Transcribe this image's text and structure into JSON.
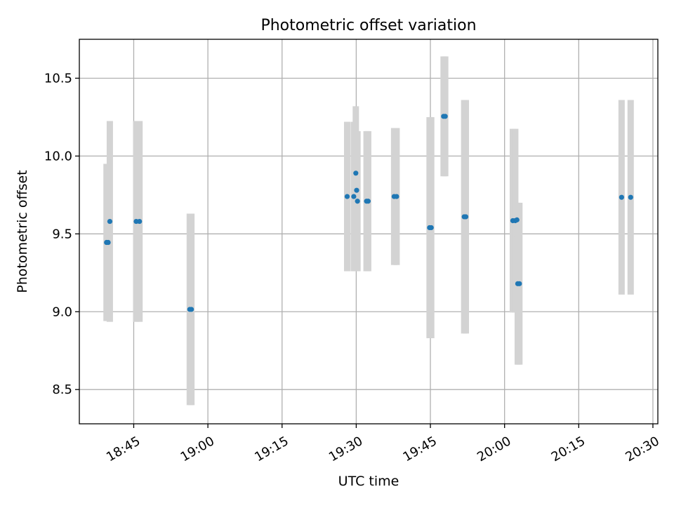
{
  "chart_data": {
    "type": "scatter",
    "title": "Photometric offset variation",
    "xlabel": "UTC time",
    "ylabel": "Photometric offset",
    "x_is_time": true,
    "xlim": [
      "18:34:00",
      "20:31:00"
    ],
    "ylim": [
      8.28,
      10.75
    ],
    "x_ticks": [
      "18:45",
      "19:00",
      "19:15",
      "19:30",
      "19:45",
      "20:00",
      "20:15",
      "20:30"
    ],
    "y_ticks": [
      8.5,
      9.0,
      9.5,
      10.0,
      10.5
    ],
    "y_tick_labels": [
      "8.5",
      "9.0",
      "9.5",
      "10.0",
      "10.5"
    ],
    "grid": true,
    "colors": {
      "points": "#1f77b4",
      "errorbars": "#d3d3d3",
      "grid": "#b0b0b0",
      "axes": "#000000"
    },
    "points": [
      {
        "x": "18:39:30",
        "y": 9.445,
        "yerr": 0.505
      },
      {
        "x": "18:39:50",
        "y": 9.445,
        "yerr": 0.505
      },
      {
        "x": "18:40:10",
        "y": 9.58,
        "yerr": 0.645
      },
      {
        "x": "18:45:30",
        "y": 9.58,
        "yerr": 0.645
      },
      {
        "x": "18:46:10",
        "y": 9.58,
        "yerr": 0.645
      },
      {
        "x": "18:56:20",
        "y": 9.015,
        "yerr": 0.615
      },
      {
        "x": "18:56:40",
        "y": 9.015,
        "yerr": 0.615
      },
      {
        "x": "19:28:10",
        "y": 9.74,
        "yerr": 0.48
      },
      {
        "x": "19:29:30",
        "y": 9.74,
        "yerr": 0.48
      },
      {
        "x": "19:29:55",
        "y": 9.89,
        "yerr": 0.43
      },
      {
        "x": "19:30:05",
        "y": 9.78,
        "yerr": 0.38
      },
      {
        "x": "19:30:15",
        "y": 9.71,
        "yerr": 0.45
      },
      {
        "x": "19:32:05",
        "y": 9.71,
        "yerr": 0.45
      },
      {
        "x": "19:32:25",
        "y": 9.71,
        "yerr": 0.45
      },
      {
        "x": "19:37:40",
        "y": 9.74,
        "yerr": 0.44
      },
      {
        "x": "19:38:10",
        "y": 9.74,
        "yerr": 0.44
      },
      {
        "x": "19:44:50",
        "y": 9.54,
        "yerr": 0.71
      },
      {
        "x": "19:45:10",
        "y": 9.54,
        "yerr": 0.71
      },
      {
        "x": "19:47:40",
        "y": 10.255,
        "yerr": 0.385
      },
      {
        "x": "19:48:00",
        "y": 10.255,
        "yerr": 0.385
      },
      {
        "x": "19:51:50",
        "y": 9.61,
        "yerr": 0.75
      },
      {
        "x": "19:52:10",
        "y": 9.61,
        "yerr": 0.75
      },
      {
        "x": "20:01:40",
        "y": 9.585,
        "yerr": 0.59
      },
      {
        "x": "20:02:10",
        "y": 9.585,
        "yerr": 0.59
      },
      {
        "x": "20:02:30",
        "y": 9.59,
        "yerr": 0.11
      },
      {
        "x": "20:02:40",
        "y": 9.18,
        "yerr": 0.52
      },
      {
        "x": "20:03:00",
        "y": 9.18,
        "yerr": 0.52
      },
      {
        "x": "20:23:40",
        "y": 9.735,
        "yerr": 0.625
      },
      {
        "x": "20:25:30",
        "y": 9.735,
        "yerr": 0.625
      }
    ]
  }
}
